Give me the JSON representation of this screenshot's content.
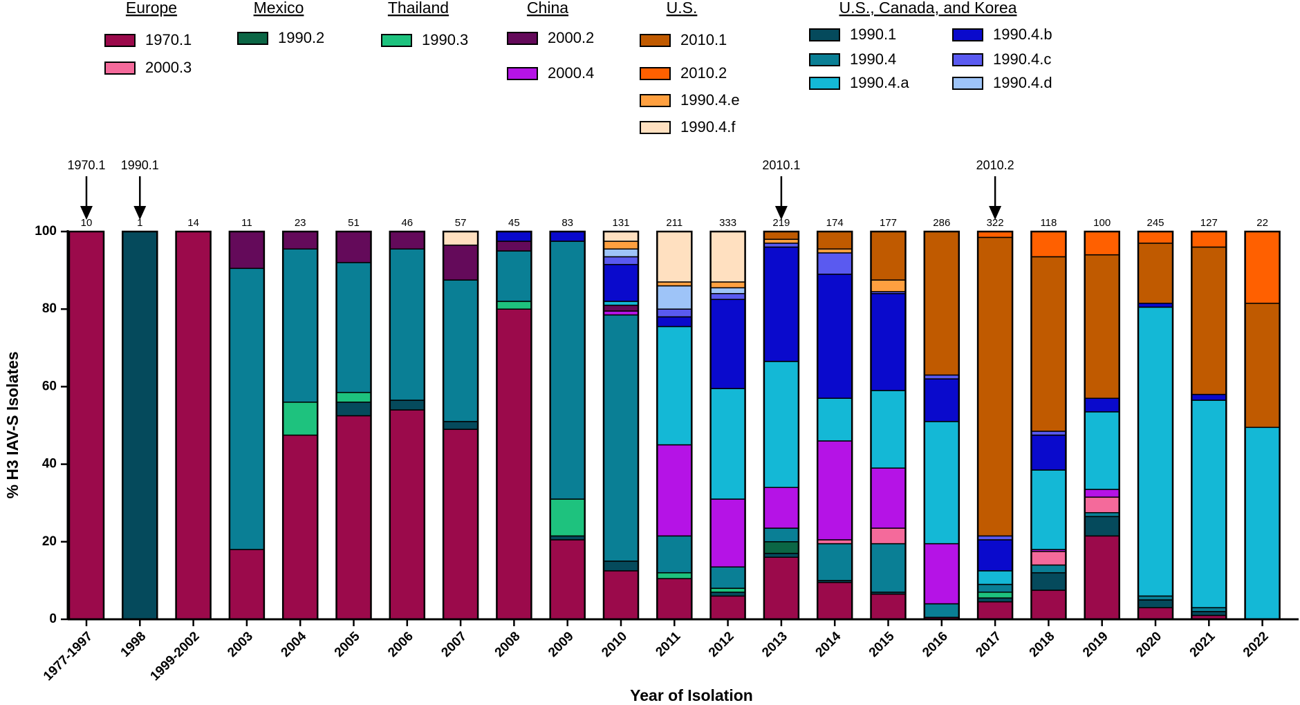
{
  "chart_data": {
    "type": "stacked_bar",
    "x_label": "Year of Isolation",
    "y_label": "% H3 IAV-S Isolates",
    "categories": [
      "1977-1997",
      "1998",
      "1999-2002",
      "2003",
      "2004",
      "2005",
      "2006",
      "2007",
      "2008",
      "2009",
      "2010",
      "2011",
      "2012",
      "2013",
      "2014",
      "2015",
      "2016",
      "2017",
      "2018",
      "2019",
      "2020",
      "2021",
      "2022"
    ],
    "totals": [
      10,
      1,
      14,
      11,
      23,
      51,
      46,
      57,
      45,
      83,
      131,
      211,
      333,
      219,
      174,
      177,
      286,
      322,
      118,
      100,
      245,
      127,
      22
    ],
    "ylim": [
      0,
      100
    ],
    "yticks": [
      0,
      20,
      40,
      60,
      80,
      100
    ],
    "annotations": [
      {
        "text": "1970.1",
        "category": "1977-1997"
      },
      {
        "text": "1990.1",
        "category": "1998"
      },
      {
        "text": "2010.1",
        "category": "2013"
      },
      {
        "text": "2010.2",
        "category": "2017"
      }
    ],
    "legend_groups": [
      {
        "title": "Europe",
        "series": [
          {
            "name": "1970.1",
            "color": "#9b0a4b",
            "values": [
              100,
              0,
              100,
              18,
              47.5,
              52.5,
              54,
              49,
              80,
              20.5,
              12.5,
              10.5,
              6,
              16,
              9.5,
              6.5,
              0.5,
              4.5,
              7.5,
              21.5,
              3,
              1,
              0
            ]
          },
          {
            "name": "2000.3",
            "color": "#f46a9b",
            "values": [
              0,
              0,
              0,
              0,
              0,
              0,
              0,
              0,
              0,
              0,
              0,
              0,
              0,
              0,
              1,
              4,
              0,
              0,
              3.5,
              4,
              0,
              0,
              0
            ]
          }
        ]
      },
      {
        "title": "Mexico",
        "series": [
          {
            "name": "1990.2",
            "color": "#0b6645",
            "values": [
              0,
              0,
              0,
              0,
              0,
              0,
              0,
              0,
              0,
              0,
              0,
              0,
              0,
              3,
              0,
              0,
              0,
              0,
              0,
              0,
              0,
              0,
              0
            ]
          }
        ]
      },
      {
        "title": "Thailand",
        "series": [
          {
            "name": "1990.3",
            "color": "#1ec27e",
            "values": [
              0,
              0,
              0,
              0,
              8.5,
              2.5,
              0,
              0,
              2,
              9.5,
              0,
              1.5,
              1,
              0,
              0,
              0,
              0,
              1.5,
              0,
              0,
              0,
              0,
              0
            ]
          }
        ]
      },
      {
        "title": "China",
        "series": [
          {
            "name": "2000.2",
            "color": "#640a5a",
            "values": [
              0,
              0,
              0,
              9.5,
              4.5,
              8,
              4.5,
              9,
              2.5,
              0,
              1.5,
              0,
              0,
              0,
              0,
              0,
              0,
              0,
              0,
              0,
              0,
              0,
              0
            ]
          },
          {
            "name": "2000.4",
            "color": "#b513e6",
            "values": [
              0,
              0,
              0,
              0,
              0,
              0,
              0,
              0,
              0,
              0,
              1,
              23.5,
              17.5,
              10.5,
              25.5,
              15.5,
              15.5,
              0,
              0.5,
              2,
              0,
              0,
              0
            ]
          }
        ]
      },
      {
        "title": "U.S.",
        "series": [
          {
            "name": "2010.1",
            "color": "#c05a00",
            "values": [
              0,
              0,
              0,
              0,
              0,
              0,
              0,
              0,
              0,
              0,
              0,
              0,
              0,
              2,
              4.5,
              12.5,
              37,
              77,
              45,
              37,
              15.5,
              38,
              32
            ]
          },
          {
            "name": "2010.2",
            "color": "#ff6000",
            "values": [
              0,
              0,
              0,
              0,
              0,
              0,
              0,
              0,
              0,
              0,
              0,
              0,
              0,
              0,
              0,
              0,
              0,
              1.5,
              6.5,
              6,
              3,
              4,
              18.5
            ]
          },
          {
            "name": "1990.4.e",
            "color": "#ffa040",
            "values": [
              0,
              0,
              0,
              0,
              0,
              0,
              0,
              0,
              0,
              0,
              2,
              1,
              1.5,
              1,
              1,
              3,
              0,
              0,
              0,
              0,
              0,
              0,
              0
            ]
          },
          {
            "name": "1990.4.f",
            "color": "#ffe0c0",
            "values": [
              0,
              0,
              0,
              0,
              0,
              0,
              0,
              3.5,
              0,
              0,
              2.5,
              13,
              13,
              0,
              0,
              0,
              0,
              0,
              0,
              0,
              0,
              0,
              0
            ]
          }
        ]
      },
      {
        "title": "U.S., Canada, and Korea",
        "series": [
          {
            "name": "1990.1",
            "color": "#054a5c",
            "values": [
              0,
              100,
              0,
              0,
              0,
              3.5,
              2.5,
              2,
              0,
              1,
              2.5,
              0,
              1,
              1,
              0.5,
              0.5,
              0,
              1,
              4.5,
              5,
              2,
              1,
              0
            ]
          },
          {
            "name": "1990.4",
            "color": "#0a7f95",
            "values": [
              0,
              0,
              0,
              72.5,
              39.5,
              33.5,
              39,
              36.5,
              13,
              66.5,
              63.5,
              9.5,
              5.5,
              3.5,
              9.5,
              12.5,
              3.5,
              2,
              2,
              1,
              1,
              1,
              0
            ]
          },
          {
            "name": "1990.4.a",
            "color": "#14b8d6",
            "values": [
              0,
              0,
              0,
              0,
              0,
              0,
              0,
              0,
              0,
              0,
              1,
              30.5,
              28.5,
              32.5,
              11,
              20,
              31.5,
              3.5,
              20.5,
              20,
              74.5,
              53.5,
              49.5
            ]
          },
          {
            "name": "1990.4.b",
            "color": "#0a0acc",
            "values": [
              0,
              0,
              0,
              0,
              0,
              0,
              0,
              0,
              2.5,
              2.5,
              9.5,
              2.5,
              23,
              29.5,
              32,
              25,
              11,
              8,
              9,
              3.5,
              1,
              1.5,
              0
            ]
          },
          {
            "name": "1990.4.c",
            "color": "#5a5af0",
            "values": [
              0,
              0,
              0,
              0,
              0,
              0,
              0,
              0,
              0,
              0,
              2,
              2,
              1.5,
              1,
              5.5,
              0.5,
              1,
              1,
              1,
              0,
              0,
              0,
              0
            ]
          },
          {
            "name": "1990.4.d",
            "color": "#9ec4f8",
            "values": [
              0,
              0,
              0,
              0,
              0,
              0,
              0,
              0,
              0,
              0,
              2,
              6,
              1.5,
              0,
              0,
              0,
              0,
              0,
              0,
              0,
              0,
              0,
              0
            ]
          }
        ]
      }
    ]
  }
}
